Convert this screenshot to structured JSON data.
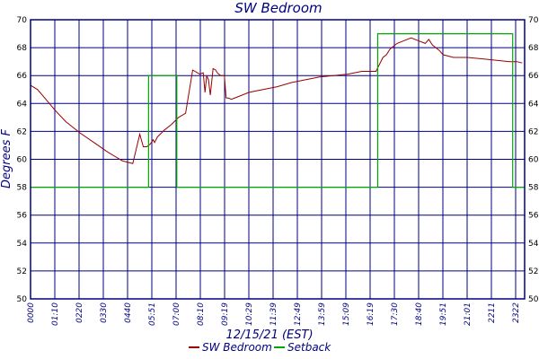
{
  "chart_data": {
    "type": "line",
    "title": "SW Bedroom",
    "xlabel": "12/15/21 (EST)",
    "ylabel": "Degrees F",
    "ylim": [
      50,
      70
    ],
    "yticks": [
      "50",
      "52",
      "54",
      "56",
      "58",
      "60",
      "62",
      "64",
      "66",
      "68",
      "70"
    ],
    "xticks": [
      "0000",
      "01:10",
      "0220",
      "0330",
      "0440",
      "05:51",
      "07:00",
      "08:10",
      "09:19",
      "10:29",
      "11:39",
      "12:49",
      "13:59",
      "15:09",
      "16:19",
      "17:30",
      "18:40",
      "19:51",
      "21:01",
      "2211",
      "2322"
    ],
    "xlim": [
      0,
      1402
    ],
    "grid": true,
    "legend_position": "bottom",
    "series": [
      {
        "name": "SW Bedroom",
        "color": "#990000",
        "x": [
          0,
          20,
          40,
          70,
          100,
          140,
          180,
          220,
          260,
          290,
          310,
          320,
          330,
          340,
          348,
          352,
          360,
          380,
          400,
          420,
          440,
          460,
          480,
          490,
          495,
          500,
          505,
          510,
          518,
          525,
          530,
          534,
          540,
          545,
          550,
          555,
          560,
          570,
          580,
          600,
          620,
          660,
          700,
          740,
          780,
          820,
          860,
          900,
          940,
          980,
          1000,
          1010,
          1020,
          1040,
          1060,
          1080,
          1100,
          1120,
          1130,
          1140,
          1150,
          1160,
          1170,
          1200,
          1240,
          1280,
          1320,
          1360,
          1380,
          1395
        ],
        "values": [
          65.3,
          65.0,
          64.4,
          63.5,
          62.7,
          61.9,
          61.2,
          60.5,
          59.9,
          59.7,
          61.8,
          60.9,
          60.9,
          61.1,
          61.4,
          61.2,
          61.6,
          62.1,
          62.5,
          63.0,
          63.3,
          66.4,
          66.1,
          66.2,
          64.8,
          66.0,
          65.7,
          64.6,
          66.5,
          66.4,
          66.2,
          66.1,
          66.0,
          66.0,
          66.0,
          64.4,
          64.4,
          64.3,
          64.4,
          64.6,
          64.8,
          65.0,
          65.2,
          65.5,
          65.7,
          65.9,
          66.0,
          66.1,
          66.3,
          66.3,
          67.3,
          67.5,
          67.9,
          68.3,
          68.5,
          68.7,
          68.5,
          68.3,
          68.6,
          68.2,
          68.0,
          67.8,
          67.5,
          67.3,
          67.3,
          67.2,
          67.1,
          67.0,
          67.0,
          66.9
        ]
      },
      {
        "name": "Setback",
        "color": "#00aa00",
        "x": [
          0,
          335,
          335,
          415,
          415,
          985,
          985,
          1368,
          1368,
          1402
        ],
        "values": [
          58,
          58,
          66,
          66,
          58,
          58,
          69,
          69,
          58,
          58
        ]
      }
    ]
  }
}
